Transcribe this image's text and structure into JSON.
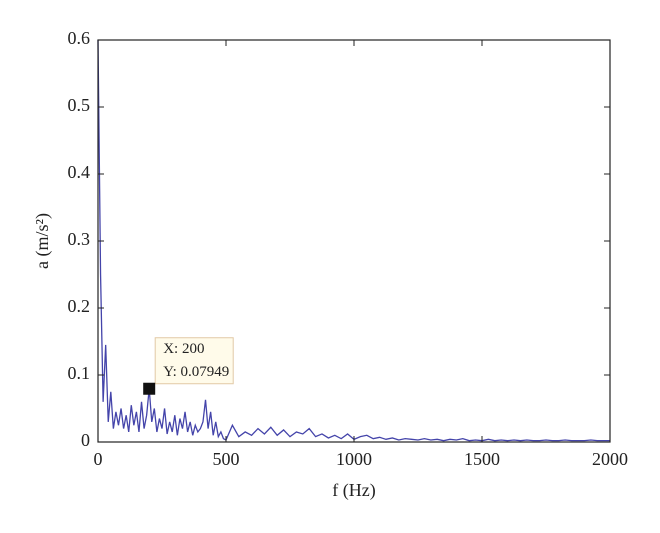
{
  "chart_data": {
    "type": "line",
    "xlabel": "f (Hz)",
    "ylabel": "a (m/s²)",
    "color": "#4444aa",
    "x": [
      0,
      10,
      20,
      30,
      40,
      50,
      60,
      70,
      80,
      90,
      100,
      110,
      120,
      130,
      140,
      150,
      160,
      170,
      180,
      190,
      200,
      210,
      220,
      230,
      240,
      250,
      260,
      270,
      280,
      290,
      300,
      310,
      320,
      330,
      340,
      350,
      360,
      370,
      380,
      390,
      400,
      410,
      420,
      430,
      440,
      450,
      460,
      470,
      480,
      490,
      500,
      525,
      550,
      575,
      600,
      625,
      650,
      675,
      700,
      725,
      750,
      775,
      800,
      825,
      850,
      875,
      900,
      925,
      950,
      975,
      1000,
      1025,
      1050,
      1075,
      1100,
      1125,
      1150,
      1175,
      1200,
      1225,
      1250,
      1275,
      1300,
      1325,
      1350,
      1375,
      1400,
      1425,
      1450,
      1475,
      1500,
      1525,
      1550,
      1575,
      1600,
      1625,
      1650,
      1675,
      1700,
      1725,
      1750,
      1775,
      1800,
      1825,
      1850,
      1875,
      1900,
      1925,
      1950,
      1975,
      2000
    ],
    "values": [
      0.6,
      0.25,
      0.06,
      0.145,
      0.03,
      0.075,
      0.02,
      0.045,
      0.025,
      0.05,
      0.02,
      0.04,
      0.015,
      0.055,
      0.025,
      0.045,
      0.015,
      0.06,
      0.02,
      0.04,
      0.07949,
      0.03,
      0.05,
      0.015,
      0.035,
      0.02,
      0.05,
      0.012,
      0.03,
      0.015,
      0.04,
      0.01,
      0.035,
      0.02,
      0.045,
      0.015,
      0.03,
      0.01,
      0.025,
      0.015,
      0.02,
      0.03,
      0.063,
      0.02,
      0.045,
      0.01,
      0.03,
      0.008,
      0.015,
      0.005,
      0.003,
      0.025,
      0.008,
      0.015,
      0.01,
      0.02,
      0.012,
      0.022,
      0.01,
      0.018,
      0.008,
      0.015,
      0.012,
      0.02,
      0.008,
      0.012,
      0.006,
      0.01,
      0.005,
      0.012,
      0.004,
      0.008,
      0.01,
      0.005,
      0.007,
      0.004,
      0.006,
      0.003,
      0.005,
      0.004,
      0.003,
      0.005,
      0.003,
      0.004,
      0.002,
      0.004,
      0.003,
      0.005,
      0.002,
      0.003,
      0.002,
      0.004,
      0.002,
      0.003,
      0.002,
      0.003,
      0.002,
      0.003,
      0.002,
      0.002,
      0.003,
      0.002,
      0.002,
      0.003,
      0.002,
      0.002,
      0.002,
      0.003,
      0.002,
      0.002,
      0.002
    ],
    "xlim": [
      0,
      2000
    ],
    "xticks": [
      0,
      500,
      1000,
      1500,
      2000
    ],
    "ylim": [
      0,
      0.6
    ],
    "yticks": [
      0,
      0.1,
      0.2,
      0.3,
      0.4,
      0.5,
      0.6
    ],
    "annotation": {
      "x": 200,
      "y": 0.07949,
      "lines": [
        "X: 200",
        "Y: 0.07949"
      ]
    }
  }
}
